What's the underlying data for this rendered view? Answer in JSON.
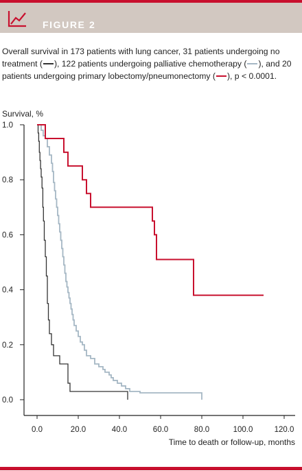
{
  "header": {
    "figure_label": "FIGURE 2",
    "icon": "line-chart-icon"
  },
  "caption": {
    "part1": "Overall survival in 173 patients with lung cancer, 31 patients undergoing no treatment (",
    "part2": "), 122 patients undergoing palliative chemotherapy (",
    "part3": "), and 20 patients undergoing primary lobectomy/pneumonectomy (",
    "part4": "), p < 0.0001."
  },
  "colors": {
    "accent": "#c8102e",
    "band": "#d2c8c1",
    "no_treatment": "#333333",
    "chemotherapy": "#a5b7c4",
    "surgery": "#c8102e"
  },
  "chart_data": {
    "type": "line",
    "step": true,
    "title": "",
    "xlabel": "Time to death or follow-up, months",
    "ylabel": "Survival, %",
    "xlim": [
      -5,
      120
    ],
    "ylim": [
      0,
      1.0
    ],
    "x_ticks": [
      0,
      20,
      40,
      60,
      80,
      100,
      120
    ],
    "x_tick_labels": [
      "0.0",
      "20.0",
      "40.0",
      "60.0",
      "80.0",
      "100.0",
      "120.0"
    ],
    "y_ticks": [
      0,
      0.2,
      0.4,
      0.6,
      0.8,
      1.0
    ],
    "y_tick_labels": [
      "0.0",
      "0.2",
      "0.4",
      "0.6",
      "0.8",
      "1.0"
    ],
    "grid": false,
    "series": [
      {
        "key": "no_treatment",
        "points": [
          [
            0,
            1.0
          ],
          [
            0.5,
            0.97
          ],
          [
            0.8,
            0.94
          ],
          [
            1.1,
            0.9
          ],
          [
            1.4,
            0.87
          ],
          [
            1.7,
            0.84
          ],
          [
            2.0,
            0.81
          ],
          [
            2.4,
            0.77
          ],
          [
            2.8,
            0.7
          ],
          [
            3.1,
            0.65
          ],
          [
            3.5,
            0.58
          ],
          [
            4.0,
            0.52
          ],
          [
            4.5,
            0.45
          ],
          [
            5.0,
            0.35
          ],
          [
            5.5,
            0.29
          ],
          [
            6.0,
            0.24
          ],
          [
            7.0,
            0.2
          ],
          [
            8.0,
            0.16
          ],
          [
            10.0,
            0.16
          ],
          [
            11.0,
            0.13
          ],
          [
            14.0,
            0.13
          ],
          [
            15.0,
            0.06
          ],
          [
            16.0,
            0.03
          ],
          [
            44,
            0.03
          ]
        ],
        "end": [
          44,
          0.0
        ]
      },
      {
        "key": "chemotherapy",
        "points": [
          [
            0,
            1.0
          ],
          [
            2,
            0.98
          ],
          [
            3,
            0.96
          ],
          [
            4,
            0.95
          ],
          [
            5,
            0.92
          ],
          [
            6,
            0.89
          ],
          [
            7,
            0.86
          ],
          [
            7.5,
            0.83
          ],
          [
            8,
            0.79
          ],
          [
            8.5,
            0.76
          ],
          [
            9,
            0.73
          ],
          [
            9.5,
            0.7
          ],
          [
            10,
            0.67
          ],
          [
            10.5,
            0.64
          ],
          [
            11,
            0.61
          ],
          [
            11.5,
            0.58
          ],
          [
            12,
            0.55
          ],
          [
            12.5,
            0.52
          ],
          [
            13,
            0.49
          ],
          [
            13.5,
            0.46
          ],
          [
            14,
            0.43
          ],
          [
            14.5,
            0.41
          ],
          [
            15,
            0.39
          ],
          [
            15.5,
            0.37
          ],
          [
            16,
            0.35
          ],
          [
            16.5,
            0.33
          ],
          [
            17,
            0.31
          ],
          [
            17.5,
            0.29
          ],
          [
            18,
            0.27
          ],
          [
            19,
            0.25
          ],
          [
            20,
            0.23
          ],
          [
            21,
            0.21
          ],
          [
            22,
            0.2
          ],
          [
            23,
            0.18
          ],
          [
            24,
            0.16
          ],
          [
            26,
            0.15
          ],
          [
            28,
            0.13
          ],
          [
            30,
            0.12
          ],
          [
            32,
            0.11
          ],
          [
            33,
            0.1
          ],
          [
            35,
            0.09
          ],
          [
            36,
            0.08
          ],
          [
            37,
            0.07
          ],
          [
            39,
            0.06
          ],
          [
            41,
            0.05
          ],
          [
            43,
            0.04
          ],
          [
            45,
            0.03
          ],
          [
            50,
            0.025
          ],
          [
            80,
            0.025
          ]
        ],
        "end": [
          80,
          0.0
        ]
      },
      {
        "key": "surgery",
        "points": [
          [
            0,
            1.0
          ],
          [
            4,
            0.95
          ],
          [
            13,
            0.9
          ],
          [
            15,
            0.85
          ],
          [
            22,
            0.8
          ],
          [
            24,
            0.75
          ],
          [
            26,
            0.7
          ],
          [
            56,
            0.65
          ],
          [
            57,
            0.6
          ],
          [
            58,
            0.51
          ],
          [
            76,
            0.38
          ],
          [
            110,
            0.38
          ]
        ]
      }
    ]
  }
}
